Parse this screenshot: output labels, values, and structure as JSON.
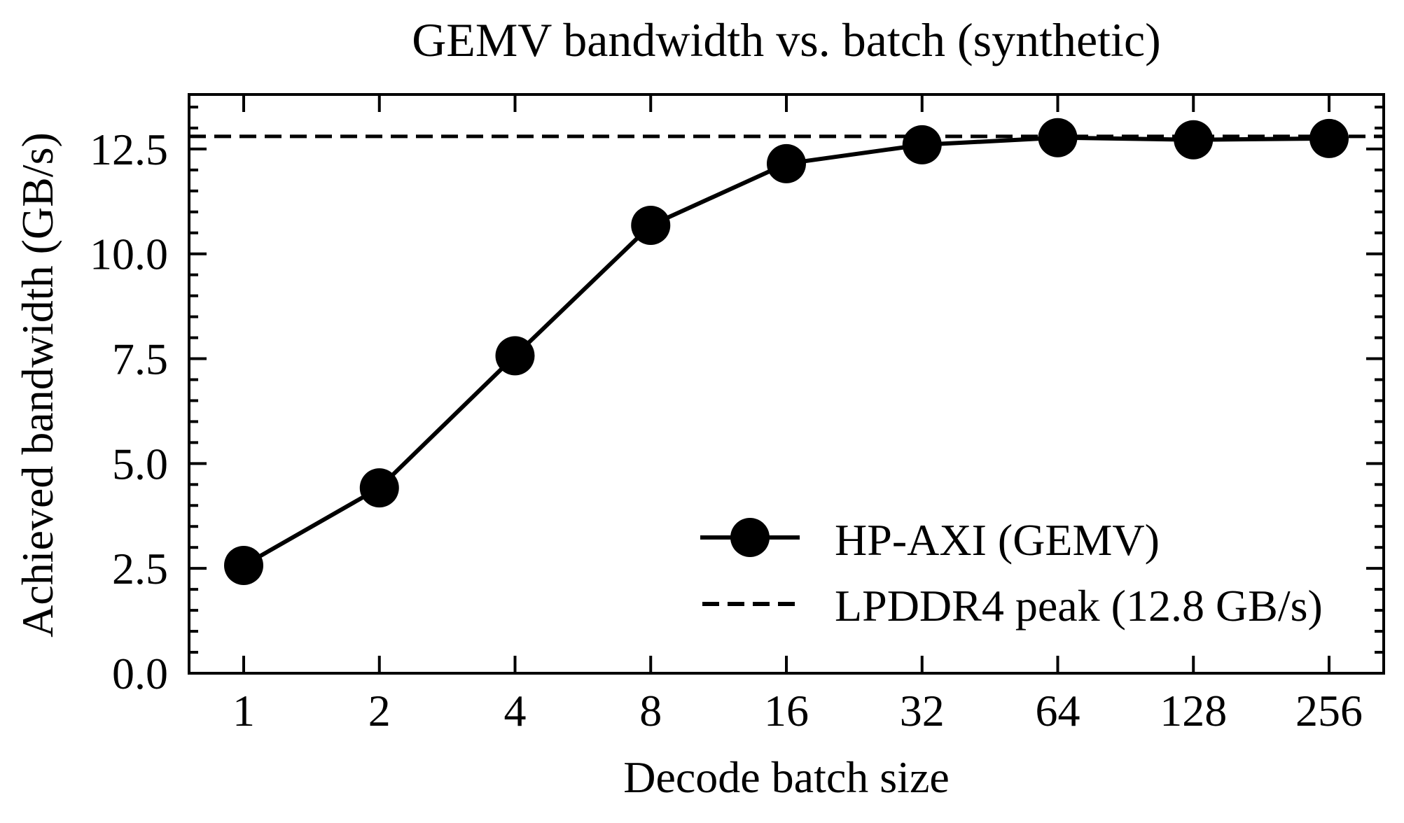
{
  "chart_data": {
    "type": "line",
    "title": "GEMV bandwidth vs. batch (synthetic)",
    "xlabel": "Decode batch size",
    "ylabel": "Achieved bandwidth (GB/s)",
    "categories": [
      "1",
      "2",
      "4",
      "8",
      "16",
      "32",
      "64",
      "128",
      "256"
    ],
    "series": [
      {
        "name": "HP-AXI (GEMV)",
        "style": "solid line with filled circle markers",
        "color": "#000000",
        "values": [
          2.57,
          4.42,
          7.57,
          10.68,
          12.15,
          12.6,
          12.77,
          12.72,
          12.75
        ]
      }
    ],
    "reference_lines": [
      {
        "name": "LPDDR4 peak (12.8 GB/s)",
        "style": "dashed horizontal",
        "color": "#000000",
        "y": 12.8
      }
    ],
    "ylim": [
      0,
      13.8
    ],
    "yticks": [
      0.0,
      2.5,
      5.0,
      7.5,
      10.0,
      12.5
    ],
    "ytick_labels": [
      "0.0",
      "2.5",
      "5.0",
      "7.5",
      "10.0",
      "12.5"
    ],
    "yminor_step": 0.5,
    "grid": false,
    "legend_position": "lower right",
    "tick_direction": "in"
  },
  "legend": {
    "items": [
      {
        "label": "HP-AXI (GEMV)"
      },
      {
        "label": "LPDDR4 peak (12.8 GB/s)"
      }
    ]
  }
}
